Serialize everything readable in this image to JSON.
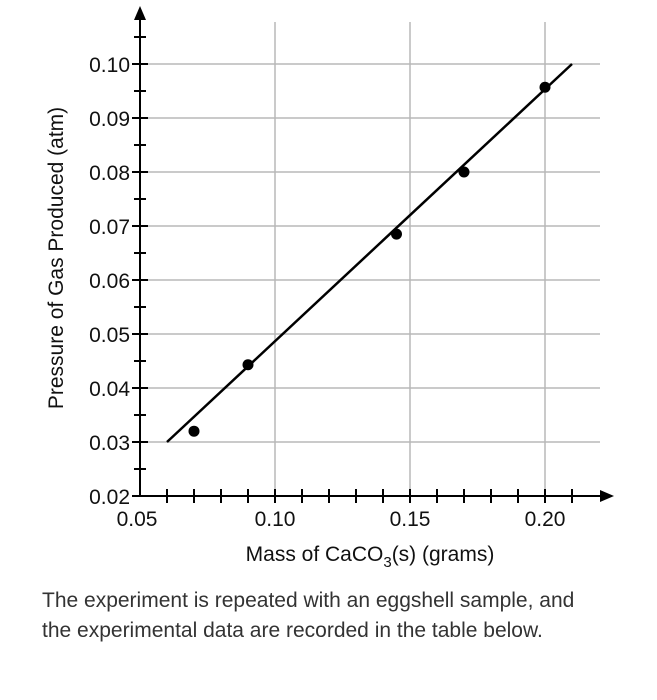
{
  "chart_data": {
    "type": "scatter",
    "xlabel_prefix": "Mass of CaCO",
    "xlabel_sub": "3",
    "xlabel_suffix": "(s) (grams)",
    "ylabel": "Pressure of Gas Produced (atm)",
    "xlim": [
      0.05,
      0.21
    ],
    "ylim": [
      0.02,
      0.1
    ],
    "x_ticks": [
      "0.05",
      "0.10",
      "0.15",
      "0.20"
    ],
    "y_ticks": [
      "0.02",
      "0.03",
      "0.04",
      "0.05",
      "0.06",
      "0.07",
      "0.08",
      "0.09",
      "0.10"
    ],
    "grid": true,
    "points": [
      {
        "x": 0.07,
        "y": 0.032
      },
      {
        "x": 0.09,
        "y": 0.0443
      },
      {
        "x": 0.145,
        "y": 0.0685
      },
      {
        "x": 0.17,
        "y": 0.08
      },
      {
        "x": 0.2,
        "y": 0.0957
      }
    ],
    "fit_line": {
      "x": [
        0.06,
        0.21
      ],
      "y": [
        0.03,
        0.1
      ]
    }
  },
  "caption": "The experiment is repeated with an eggshell sample, and the experimental data are recorded in the table below."
}
